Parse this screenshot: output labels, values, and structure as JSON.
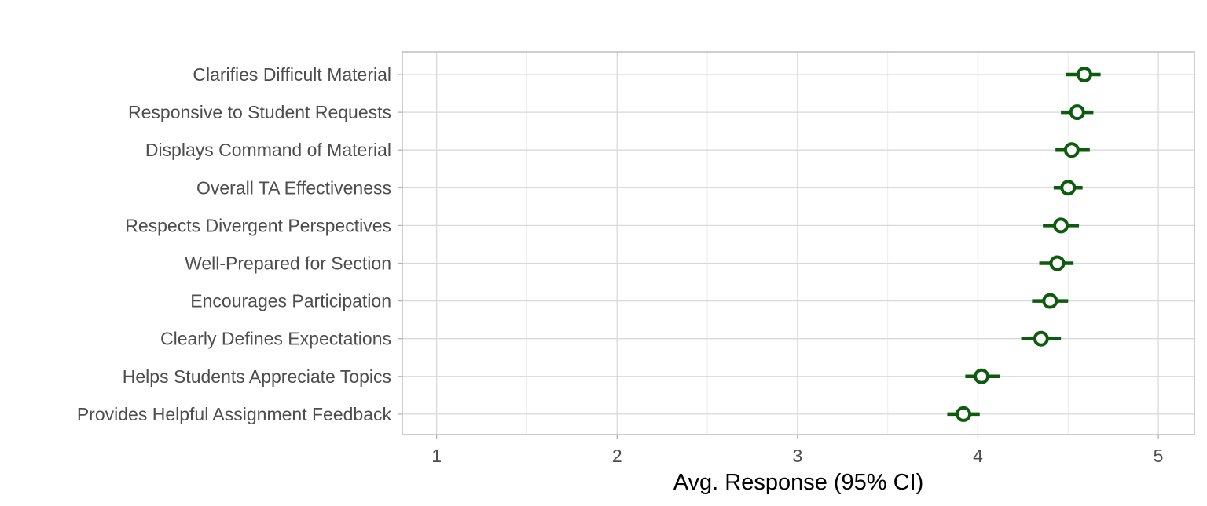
{
  "chart_data": {
    "type": "scatter",
    "title": "",
    "xlabel": "Avg. Response (95% CI)",
    "ylabel": "",
    "xlim": [
      0.81,
      5.2
    ],
    "x_ticks": [
      1,
      2,
      3,
      4,
      5
    ],
    "x_tick_labels": [
      "1",
      "2",
      "3",
      "4",
      "5"
    ],
    "grid": true,
    "legend": "none",
    "colors": {
      "point": "#0d5c0d",
      "point_fill": "#ffffff",
      "grid_major": "#d9d9d9",
      "grid_minor": "#ececec",
      "panel_border": "#b3b3b3",
      "tick_text": "#4d4d4d",
      "axis_title": "#000000"
    },
    "categories": [
      "Clarifies Difficult Material",
      "Responsive to Student Requests",
      "Displays Command of Material",
      "Overall TA Effectiveness",
      "Respects Divergent Perspectives",
      "Well-Prepared for Section",
      "Encourages Participation",
      "Clearly Defines Expectations",
      "Helps Students Appreciate Topics",
      "Provides Helpful Assignment Feedback"
    ],
    "series": [
      {
        "points": [
          {
            "category": "Clarifies Difficult Material",
            "mean": 4.59,
            "lower": 4.49,
            "upper": 4.68
          },
          {
            "category": "Responsive to Student Requests",
            "mean": 4.55,
            "lower": 4.46,
            "upper": 4.64
          },
          {
            "category": "Displays Command of Material",
            "mean": 4.52,
            "lower": 4.43,
            "upper": 4.62
          },
          {
            "category": "Overall TA Effectiveness",
            "mean": 4.5,
            "lower": 4.42,
            "upper": 4.58
          },
          {
            "category": "Respects Divergent Perspectives",
            "mean": 4.46,
            "lower": 4.36,
            "upper": 4.56
          },
          {
            "category": "Well-Prepared for Section",
            "mean": 4.44,
            "lower": 4.34,
            "upper": 4.53
          },
          {
            "category": "Encourages Participation",
            "mean": 4.4,
            "lower": 4.3,
            "upper": 4.5
          },
          {
            "category": "Clearly Defines Expectations",
            "mean": 4.35,
            "lower": 4.24,
            "upper": 4.46
          },
          {
            "category": "Helps Students Appreciate Topics",
            "mean": 4.02,
            "lower": 3.93,
            "upper": 4.12
          },
          {
            "category": "Provides Helpful Assignment Feedback",
            "mean": 3.92,
            "lower": 3.83,
            "upper": 4.01
          }
        ]
      }
    ]
  }
}
